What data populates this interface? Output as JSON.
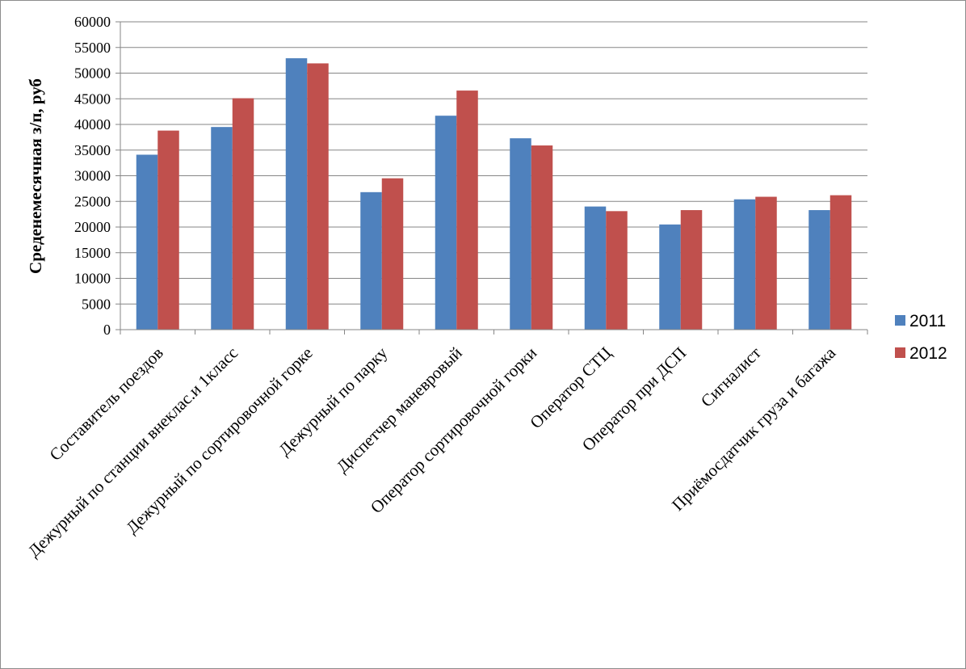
{
  "chart_data": {
    "type": "bar",
    "ylabel": "Среденемесячная  з/п,  руб",
    "xlabel": "",
    "ylim": [
      0,
      60000
    ],
    "ytick_step": 5000,
    "grid": true,
    "legend_position": "right",
    "categories": [
      "Составитель поездов",
      "Дежурный по станции внеклас.и 1класс",
      "Дежурный по сортировочной горке",
      "Дежурный по парку",
      "Диспетчер маневровый",
      "Оператор сортировочной горки",
      "Оператор СТЦ",
      "Оператор при ДСП",
      "Сигналист",
      "Приёмосдатчик груза и багажа"
    ],
    "series": [
      {
        "name": "2011",
        "color": "#4f81bd",
        "values": [
          34100,
          39500,
          52900,
          26800,
          41700,
          37300,
          24000,
          20500,
          25400,
          23300
        ]
      },
      {
        "name": "2012",
        "color": "#c0504d",
        "values": [
          38800,
          45100,
          51900,
          29500,
          46600,
          35900,
          23100,
          23300,
          25900,
          26200
        ]
      }
    ]
  }
}
